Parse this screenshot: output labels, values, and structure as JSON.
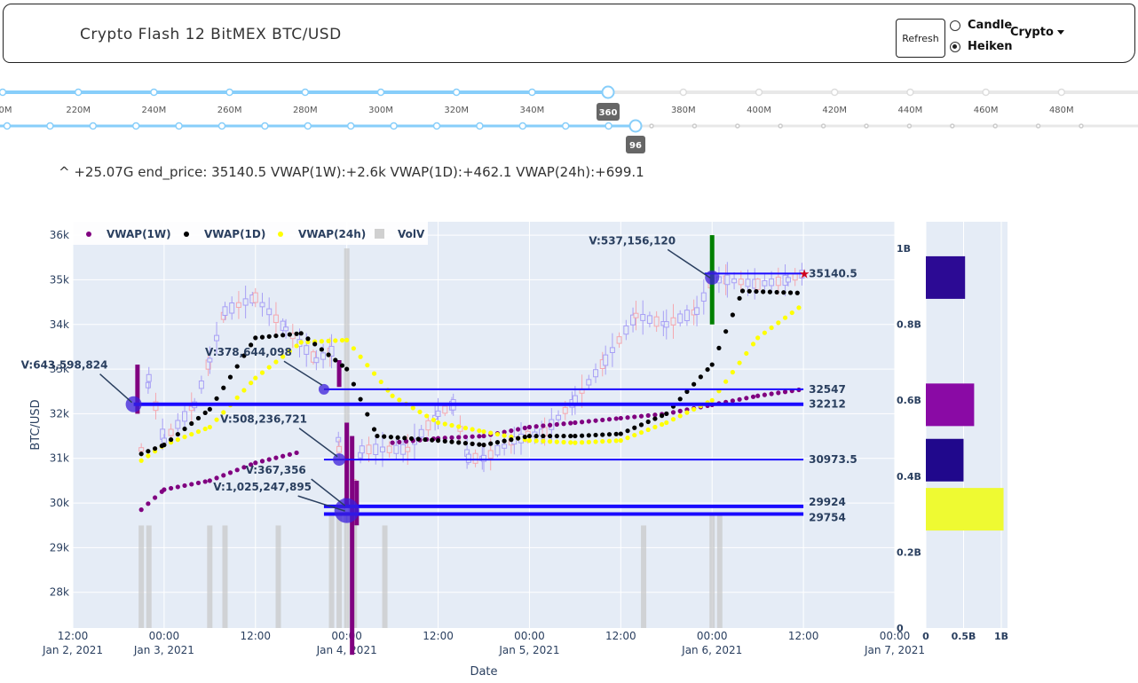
{
  "header": {
    "title": "Crypto Flash 12 BitMEX BTC/USD",
    "refresh_label": "Refresh",
    "radio_candle": "Candle",
    "radio_heiken": "Heiken",
    "selected_mode": "Heiken",
    "dropdown_label": "Crypto"
  },
  "sliders": {
    "slider1": {
      "ticks": [
        "0M",
        "220M",
        "240M",
        "260M",
        "280M",
        "300M",
        "320M",
        "340M",
        "360M",
        "380M",
        "400M",
        "420M",
        "440M",
        "460M",
        "480M"
      ],
      "value_label": "360",
      "value": 360
    },
    "slider2": {
      "value_label": "96",
      "value": 96
    }
  },
  "info_line": "^ +25.07G end_price: 35140.5 VWAP(1W):+2.6k VWAP(1D):+462.1 VWAP(24h):+699.1",
  "colors": {
    "accent": "#87cefa",
    "vwap1w": "#800080",
    "vwap1d": "#000000",
    "vwap24h": "#ffff00",
    "level": "#1a0aff"
  },
  "chart_data": {
    "type": "line",
    "legend": [
      {
        "name": "VWAP(1W)",
        "color": "#800080"
      },
      {
        "name": "VWAP(1D)",
        "color": "#000000"
      },
      {
        "name": "VWAP(24h)",
        "color": "#ffff00"
      },
      {
        "name": "VolV",
        "color": "#d0d0d0"
      }
    ],
    "ylabel": "BTC/USD",
    "xlabel": "Date",
    "y_ticks": [
      "28k",
      "29k",
      "30k",
      "31k",
      "32k",
      "33k",
      "34k",
      "35k",
      "36k"
    ],
    "ylim": [
      27200,
      36300
    ],
    "vol_ticks": [
      "0",
      "0.2B",
      "0.4B",
      "0.6B",
      "0.8B",
      "1B"
    ],
    "x_ticks": [
      {
        "line1": "12:00",
        "line2": "Jan 2, 2021"
      },
      {
        "line1": "00:00",
        "line2": "Jan 3, 2021"
      },
      {
        "line1": "12:00",
        "line2": ""
      },
      {
        "line1": "00:00",
        "line2": "Jan 4, 2021"
      },
      {
        "line1": "12:00",
        "line2": ""
      },
      {
        "line1": "00:00",
        "line2": "Jan 5, 2021"
      },
      {
        "line1": "12:00",
        "line2": ""
      },
      {
        "line1": "00:00",
        "line2": "Jan 6, 2021"
      },
      {
        "line1": "12:00",
        "line2": ""
      },
      {
        "line1": "00:00",
        "line2": "Jan 7, 2021"
      }
    ],
    "x_hours": [
      12,
      24,
      36,
      48,
      60,
      72,
      84,
      96,
      108,
      120
    ],
    "levels": [
      {
        "price": 32547,
        "label": "32547",
        "start_h": 45,
        "end_h": 108
      },
      {
        "price": 32212,
        "label": "32212",
        "start_h": 20,
        "end_h": 108
      },
      {
        "price": 30973.5,
        "label": "30973.5",
        "start_h": 45,
        "end_h": 108
      },
      {
        "price": 29924,
        "label": "29924",
        "start_h": 45,
        "end_h": 108
      },
      {
        "price": 29754,
        "label": "29754",
        "start_h": 45,
        "end_h": 108
      },
      {
        "price": 35140.5,
        "label": "35140.5",
        "start_h": 95,
        "end_h": 108
      }
    ],
    "annotations": [
      {
        "text": "V:643,598,824",
        "h": 20,
        "price": 32212
      },
      {
        "text": "V:378,644,098",
        "h": 45,
        "price": 32600
      },
      {
        "text": "V:508,236,721",
        "h": 47,
        "price": 31000
      },
      {
        "text": "V:367,356",
        "h": 48,
        "price": 29900
      },
      {
        "text": "V:1,025,247,895",
        "h": 48,
        "price": 29780
      },
      {
        "text": "V:537,156,120",
        "h": 96,
        "price": 35000
      }
    ],
    "vwap_1w": [
      [
        21,
        29850
      ],
      [
        24,
        30300
      ],
      [
        30,
        30500
      ],
      [
        36,
        30900
      ],
      [
        42,
        31150
      ],
      [
        48,
        null
      ],
      [
        54,
        31350
      ],
      [
        60,
        31450
      ],
      [
        66,
        31500
      ],
      [
        72,
        31700
      ],
      [
        78,
        31800
      ],
      [
        84,
        31900
      ],
      [
        90,
        32000
      ],
      [
        96,
        32200
      ],
      [
        102,
        32400
      ],
      [
        108,
        32550
      ]
    ],
    "vwap_1d": [
      [
        21,
        31100
      ],
      [
        24,
        31300
      ],
      [
        30,
        32100
      ],
      [
        36,
        33700
      ],
      [
        42,
        33800
      ],
      [
        48,
        33000
      ],
      [
        52,
        31500
      ],
      [
        60,
        31400
      ],
      [
        66,
        31300
      ],
      [
        72,
        31500
      ],
      [
        78,
        31500
      ],
      [
        84,
        31550
      ],
      [
        90,
        32000
      ],
      [
        96,
        33100
      ],
      [
        100,
        34750
      ],
      [
        108,
        34700
      ]
    ],
    "vwap_24h": [
      [
        21,
        30950
      ],
      [
        24,
        31300
      ],
      [
        30,
        31700
      ],
      [
        36,
        32800
      ],
      [
        42,
        33600
      ],
      [
        48,
        33650
      ],
      [
        54,
        32400
      ],
      [
        60,
        31800
      ],
      [
        66,
        31600
      ],
      [
        72,
        31400
      ],
      [
        78,
        31350
      ],
      [
        84,
        31400
      ],
      [
        90,
        31800
      ],
      [
        96,
        32300
      ],
      [
        102,
        33700
      ],
      [
        108,
        34450
      ]
    ],
    "side_bars": [
      {
        "price": 35050,
        "vol": 0.52,
        "color": "#2c0a94"
      },
      {
        "price": 32200,
        "vol": 0.64,
        "color": "#8a0aa5"
      },
      {
        "price": 30960,
        "vol": 0.5,
        "color": "#20088c"
      },
      {
        "price": 29860,
        "vol": 1.03,
        "color": "#eefa32"
      }
    ],
    "side_ticks": [
      "0",
      "0.5B",
      "1B"
    ]
  }
}
